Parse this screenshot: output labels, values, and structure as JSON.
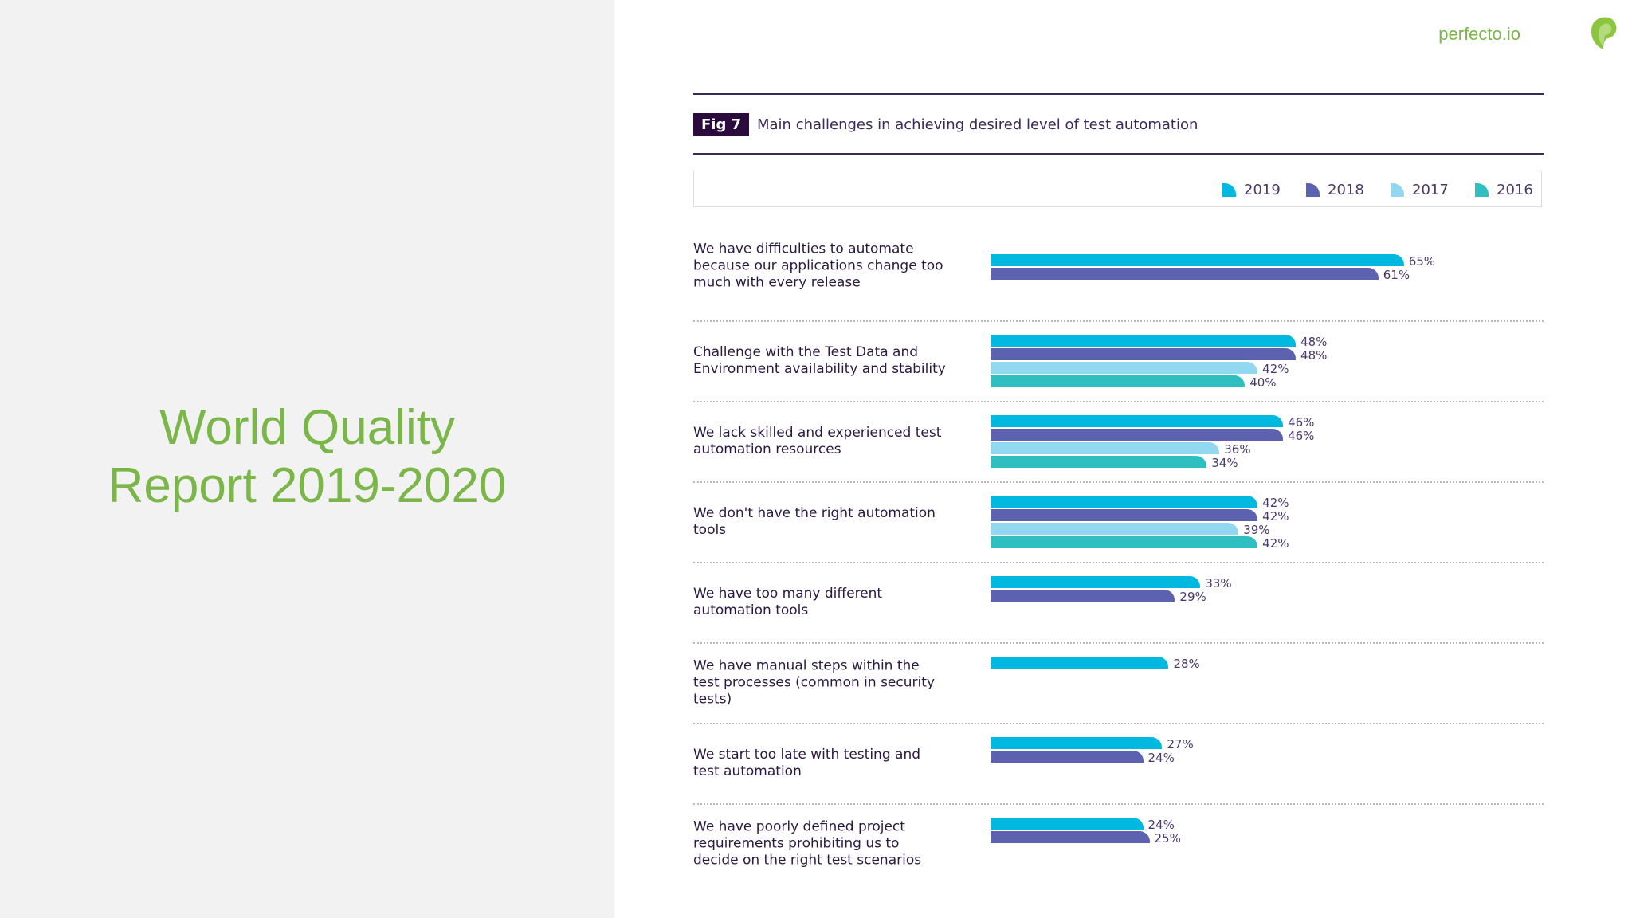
{
  "slide_title_line1": "World Quality",
  "slide_title_line2": "Report 2019-2020",
  "brand": "perfecto.io",
  "chart_data": {
    "type": "bar",
    "orientation": "horizontal",
    "fig_label": "Fig 7",
    "title": "Main challenges in achieving desired level of test automation",
    "legend_placement": "top-right",
    "series_meta": [
      {
        "name": "2019",
        "color": "#00b8e0"
      },
      {
        "name": "2018",
        "color": "#5c62b0"
      },
      {
        "name": "2017",
        "color": "#92d8f0"
      },
      {
        "name": "2016",
        "color": "#2fbfc0"
      }
    ],
    "unit": "%",
    "categories": [
      {
        "label": "We have difficulties to automate because our applications change too much with every release",
        "values": {
          "2019": 65,
          "2018": 61
        }
      },
      {
        "label": "Challenge with the Test Data and Environment availability and stability",
        "values": {
          "2019": 48,
          "2018": 48,
          "2017": 42,
          "2016": 40
        }
      },
      {
        "label": "We lack skilled and experienced test automation resources",
        "values": {
          "2019": 46,
          "2018": 46,
          "2017": 36,
          "2016": 34
        }
      },
      {
        "label": "We don't have the right automation tools",
        "values": {
          "2019": 42,
          "2018": 42,
          "2017": 39,
          "2016": 42
        }
      },
      {
        "label": "We have too many different automation tools",
        "values": {
          "2019": 33,
          "2018": 29
        }
      },
      {
        "label": "We have manual steps within the test processes (common in security tests)",
        "values": {
          "2019": 28
        }
      },
      {
        "label": "We start too late with testing and test automation",
        "values": {
          "2019": 27,
          "2018": 24
        }
      },
      {
        "label": "We have poorly defined project requirements prohibiting us to decide on the right test scenarios",
        "values": {
          "2019": 24,
          "2018": 25
        }
      }
    ]
  }
}
